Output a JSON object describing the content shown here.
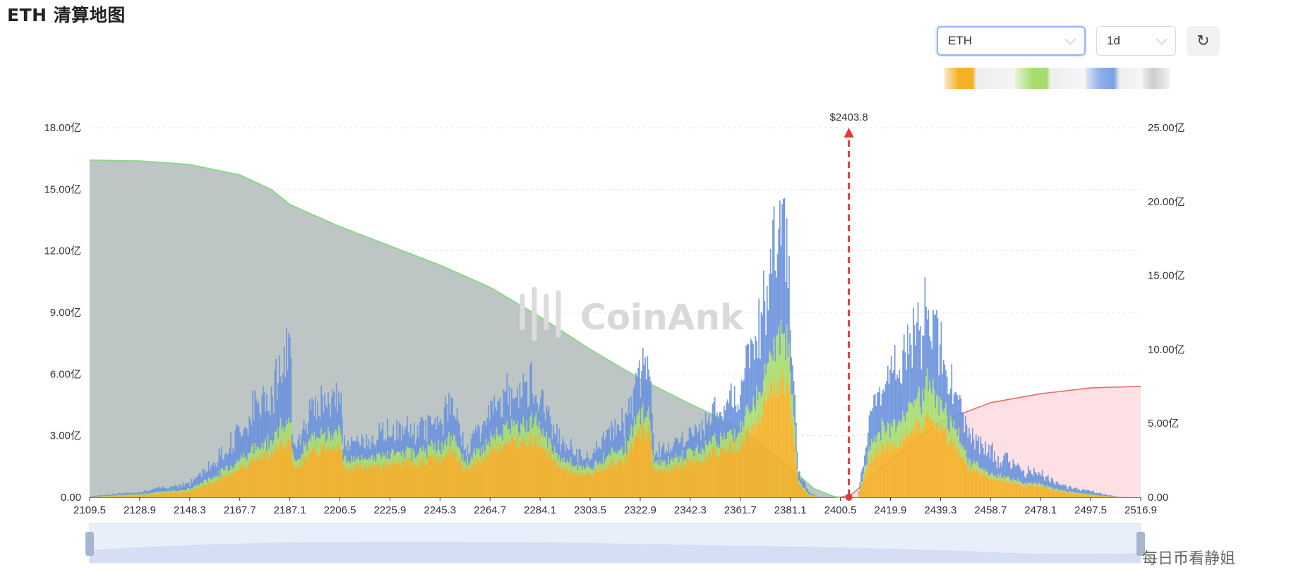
{
  "page": {
    "title": "ETH 清算地图",
    "symbol_select": "ETH",
    "interval_select": "1d",
    "refresh_icon": "refresh-icon",
    "footer_watermark": "每日币看静姐"
  },
  "chart_data": {
    "type": "area",
    "watermark": "CoinAnk",
    "current_price_label": "$2403.8",
    "current_price": 2403.8,
    "x_categories": [
      "2109.5",
      "2128.9",
      "2148.3",
      "2167.7",
      "2187.1",
      "2206.5",
      "2225.9",
      "2245.3",
      "2264.7",
      "2284.1",
      "2303.5",
      "2322.9",
      "2342.3",
      "2361.7",
      "2381.1",
      "2400.5",
      "2419.9",
      "2439.3",
      "2458.7",
      "2478.1",
      "2497.5",
      "2516.9"
    ],
    "xlim": [
      2109.5,
      2516.9
    ],
    "y_left": {
      "ticks": [
        "0.00",
        "3.00亿",
        "6.00亿",
        "9.00亿",
        "12.00亿",
        "15.00亿",
        "18.00亿"
      ],
      "ylim": [
        0,
        18
      ]
    },
    "y_right": {
      "ticks": [
        "0.00",
        "5.00亿",
        "10.00亿",
        "15.00亿",
        "20.00亿",
        "25.00亿"
      ],
      "ylim": [
        0,
        25
      ]
    },
    "grid": true,
    "colors": {
      "blue": "#6b93dc",
      "green": "#a6dc6e",
      "orange": "#f4b125",
      "cum_long_fill": "#b9c3c1",
      "cum_long_line": "#8ed88a",
      "cum_short_fill": "#fcdde0",
      "cum_short_line": "#e86a6a",
      "price_line": "#e53935"
    },
    "series": [
      {
        "kind": "bars_stacked",
        "axis": "left",
        "x": [
          2109.5,
          2128.9,
          2148.3,
          2160.0,
          2170.0,
          2180.0,
          2187.1,
          2188.0,
          2195.0,
          2200.0,
          2206.5,
          2207.5,
          2215.0,
          2225.9,
          2235.0,
          2245.3,
          2250.0,
          2255.0,
          2264.7,
          2272.0,
          2278.0,
          2284.1,
          2290.0,
          2297.0,
          2303.5,
          2310.0,
          2318.0,
          2322.9,
          2326.0,
          2328.0,
          2335.0,
          2342.3,
          2350.0,
          2361.7,
          2366.0,
          2370.0,
          2374.0,
          2378.0,
          2381.1,
          2384.0,
          2388.0,
          2392.0,
          2400.5,
          2405.0,
          2407.0,
          2412.0,
          2416.0,
          2419.9,
          2425.0,
          2430.0,
          2435.0,
          2439.3,
          2445.0,
          2450.0,
          2458.7,
          2465.0,
          2470.0,
          2478.1,
          2485.0,
          2490.0,
          2497.5,
          2503.0,
          2510.0,
          2516.9
        ],
        "orange": [
          0,
          0.1,
          0.3,
          0.9,
          1.6,
          2.2,
          2.9,
          1.4,
          2.1,
          2.4,
          2.6,
          1.4,
          1.5,
          1.6,
          1.7,
          1.9,
          2.2,
          1.3,
          2.2,
          2.6,
          2.9,
          2.7,
          1.6,
          1.2,
          1.1,
          1.6,
          2.0,
          3.3,
          3.3,
          1.3,
          1.4,
          1.7,
          2.1,
          2.6,
          3.5,
          4.3,
          5.3,
          6.2,
          4.5,
          0.6,
          0.1,
          0,
          0,
          0,
          0,
          1.8,
          2.4,
          2.5,
          2.8,
          3.4,
          3.8,
          3.2,
          2.4,
          1.4,
          0.9,
          0.8,
          0.6,
          0.5,
          0.3,
          0.2,
          0.1,
          0.05,
          0,
          0
        ],
        "green": [
          0.02,
          0.06,
          0.1,
          0.3,
          0.5,
          0.7,
          0.9,
          0.4,
          0.6,
          0.7,
          0.8,
          0.4,
          0.4,
          0.5,
          0.5,
          0.6,
          0.7,
          0.4,
          0.6,
          0.8,
          0.9,
          0.8,
          0.5,
          0.4,
          0.3,
          0.5,
          0.6,
          0.9,
          0.9,
          0.4,
          0.4,
          0.5,
          0.6,
          0.8,
          1.1,
          1.5,
          2.0,
          2.6,
          1.4,
          0.2,
          0.05,
          0,
          0,
          0,
          0,
          0.7,
          0.9,
          1.0,
          1.1,
          1.4,
          1.6,
          1.2,
          0.8,
          0.4,
          0.2,
          0.2,
          0.15,
          0.1,
          0.08,
          0.05,
          0.03,
          0.01,
          0,
          0
        ],
        "blue": [
          0.03,
          0.1,
          0.3,
          0.8,
          1.6,
          2.4,
          3.2,
          0.8,
          1.4,
          1.6,
          1.8,
          0.7,
          0.8,
          1.1,
          1.0,
          1.3,
          1.6,
          0.7,
          1.3,
          1.6,
          1.8,
          1.6,
          1.0,
          0.6,
          0.5,
          1.1,
          1.4,
          2.0,
          2.4,
          0.6,
          0.6,
          0.8,
          1.1,
          1.9,
          2.6,
          3.4,
          4.6,
          5.8,
          2.8,
          0.4,
          0.1,
          0,
          0,
          0,
          0,
          1.4,
          2.0,
          2.4,
          2.7,
          3.6,
          3.8,
          2.6,
          1.8,
          1.3,
          1.0,
          0.8,
          0.6,
          0.5,
          0.3,
          0.2,
          0.15,
          0.05,
          0,
          0
        ]
      },
      {
        "kind": "cumulative_long",
        "axis": "right",
        "x": [
          2109.5,
          2128.9,
          2148.3,
          2167.7,
          2180.0,
          2187.1,
          2206.5,
          2225.9,
          2245.3,
          2264.7,
          2284.1,
          2303.5,
          2322.9,
          2342.3,
          2361.7,
          2370.0,
          2381.1,
          2390.0,
          2398.0,
          2400.5
        ],
        "y": [
          22.8,
          22.75,
          22.5,
          21.8,
          20.8,
          19.8,
          18.3,
          17.0,
          15.7,
          14.2,
          12.2,
          10.0,
          8.0,
          6.3,
          4.7,
          3.5,
          2.0,
          0.6,
          0.05,
          0
        ]
      },
      {
        "kind": "cumulative_short",
        "axis": "right",
        "x": [
          2400.5,
          2405.0,
          2419.9,
          2439.3,
          2458.7,
          2478.1,
          2497.5,
          2516.9
        ],
        "y": [
          0,
          0.2,
          2.5,
          5.1,
          6.4,
          7.0,
          7.4,
          7.5
        ]
      }
    ]
  }
}
